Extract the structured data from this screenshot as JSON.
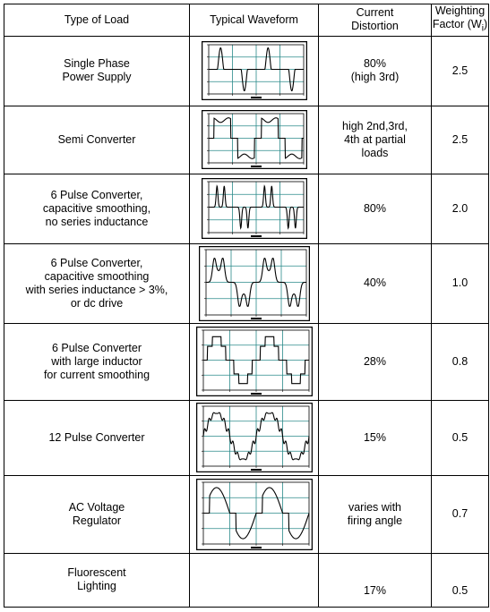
{
  "header": {
    "type_of_load": "Type of Load",
    "typical_waveform": "Typical Waveform",
    "current_distortion": "Current\nDistortion",
    "weighting_factor": "Weighting\nFactor (W",
    "weighting_subscript": "i",
    "weighting_close": ")"
  },
  "rows": [
    {
      "load": "Single Phase\nPower Supply",
      "distortion": "80%\n(high 3rd)",
      "factor": "2.5",
      "waveform": "single-phase"
    },
    {
      "load": "Semi Converter",
      "distortion": "high 2nd,3rd,\n4th at partial\nloads",
      "factor": "2.5",
      "waveform": "semi"
    },
    {
      "load": "6 Pulse Converter,\ncapacitive smoothing,\nno series inductance",
      "distortion": "80%",
      "factor": "2.0",
      "waveform": "six-cap"
    },
    {
      "load": "6 Pulse Converter,\ncapacitive smoothing\nwith series inductance > 3%,\nor dc drive",
      "distortion": "40%",
      "factor": "1.0",
      "waveform": "six-ind"
    },
    {
      "load": "6 Pulse Converter\nwith large inductor\nfor current smoothing",
      "distortion": "28%",
      "factor": "0.8",
      "waveform": "six-large"
    },
    {
      "load": "12 Pulse Converter",
      "distortion": "15%",
      "factor": "0.5",
      "waveform": "twelve"
    },
    {
      "load": "AC Voltage\nRegulator",
      "distortion": "varies with\nfiring angle",
      "factor": "0.7",
      "waveform": "ac-reg"
    },
    {
      "load": "Fluorescent\nLighting",
      "distortion": "17%",
      "factor": "0.5",
      "waveform": ""
    }
  ]
}
